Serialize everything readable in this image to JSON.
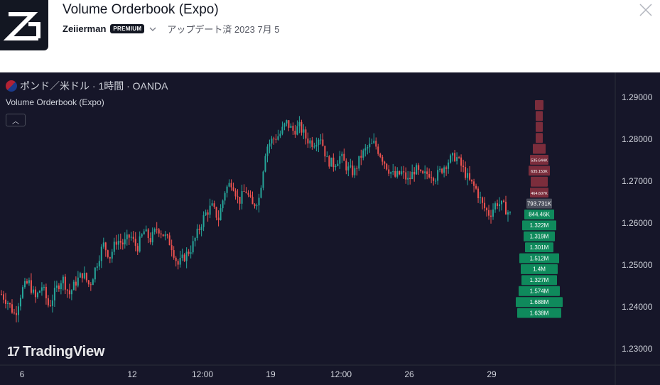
{
  "header": {
    "title": "Volume Orderbook (Expo)",
    "author": "Zeiierman",
    "badge": "PREMIUM",
    "updated": "アップデート済 2023 7月 5"
  },
  "chart": {
    "symbol": "ポンド／米ドル · 1時間 · OANDA",
    "indicator": "Volume Orderbook (Expo)",
    "brand": "TradingView",
    "colors": {
      "background": "#161629",
      "up": "#26a69a",
      "down": "#ef5350",
      "ask": "#7b2d3c",
      "bid": "#0f8a5c",
      "mid": "#4a4e5c"
    }
  },
  "chart_data": {
    "type": "candlestick",
    "price_axis": [
      "1.29000",
      "1.28000",
      "1.27000",
      "1.26000",
      "1.25000",
      "1.24000",
      "1.23000"
    ],
    "time_axis": [
      "6",
      "12",
      "12:00",
      "19",
      "12:00",
      "26",
      "29"
    ],
    "price_path": [
      1.243,
      1.241,
      1.238,
      1.244,
      1.246,
      1.242,
      1.245,
      1.24,
      1.244,
      1.247,
      1.243,
      1.246,
      1.248,
      1.245,
      1.25,
      1.255,
      1.252,
      1.256,
      1.255,
      1.257,
      1.254,
      1.258,
      1.256,
      1.259,
      1.257,
      1.255,
      1.25,
      1.252,
      1.254,
      1.258,
      1.262,
      1.264,
      1.261,
      1.268,
      1.27,
      1.265,
      1.268,
      1.264,
      1.266,
      1.278,
      1.28,
      1.281,
      1.284,
      1.282,
      1.283,
      1.28,
      1.279,
      1.281,
      1.275,
      1.274,
      1.276,
      1.273,
      1.272,
      1.276,
      1.278,
      1.279,
      1.276,
      1.273,
      1.271,
      1.272,
      1.27,
      1.273,
      1.271,
      1.272,
      1.271,
      1.273,
      1.275,
      1.276,
      1.273,
      1.27,
      1.268,
      1.264,
      1.262,
      1.265,
      1.264,
      1.262
    ],
    "orderbook": [
      {
        "label": "",
        "side": "ask"
      },
      {
        "label": "",
        "side": "ask"
      },
      {
        "label": "",
        "side": "ask"
      },
      {
        "label": "",
        "side": "ask"
      },
      {
        "label": "",
        "side": "ask"
      },
      {
        "label": "535.644K",
        "side": "ask"
      },
      {
        "label": "635.153K",
        "side": "ask"
      },
      {
        "label": "",
        "side": "ask"
      },
      {
        "label": "464.607K",
        "side": "ask"
      },
      {
        "label": "793.731K",
        "side": "mid"
      },
      {
        "label": "844.46K",
        "side": "bid"
      },
      {
        "label": "1.322M",
        "side": "bid"
      },
      {
        "label": "1.319M",
        "side": "bid"
      },
      {
        "label": "1.301M",
        "side": "bid"
      },
      {
        "label": "1.512M",
        "side": "bid"
      },
      {
        "label": "1.4M",
        "side": "bid"
      },
      {
        "label": "1.327M",
        "side": "bid"
      },
      {
        "label": "1.574M",
        "side": "bid"
      },
      {
        "label": "1.688M",
        "side": "bid"
      },
      {
        "label": "1.638M",
        "side": "bid"
      }
    ]
  }
}
